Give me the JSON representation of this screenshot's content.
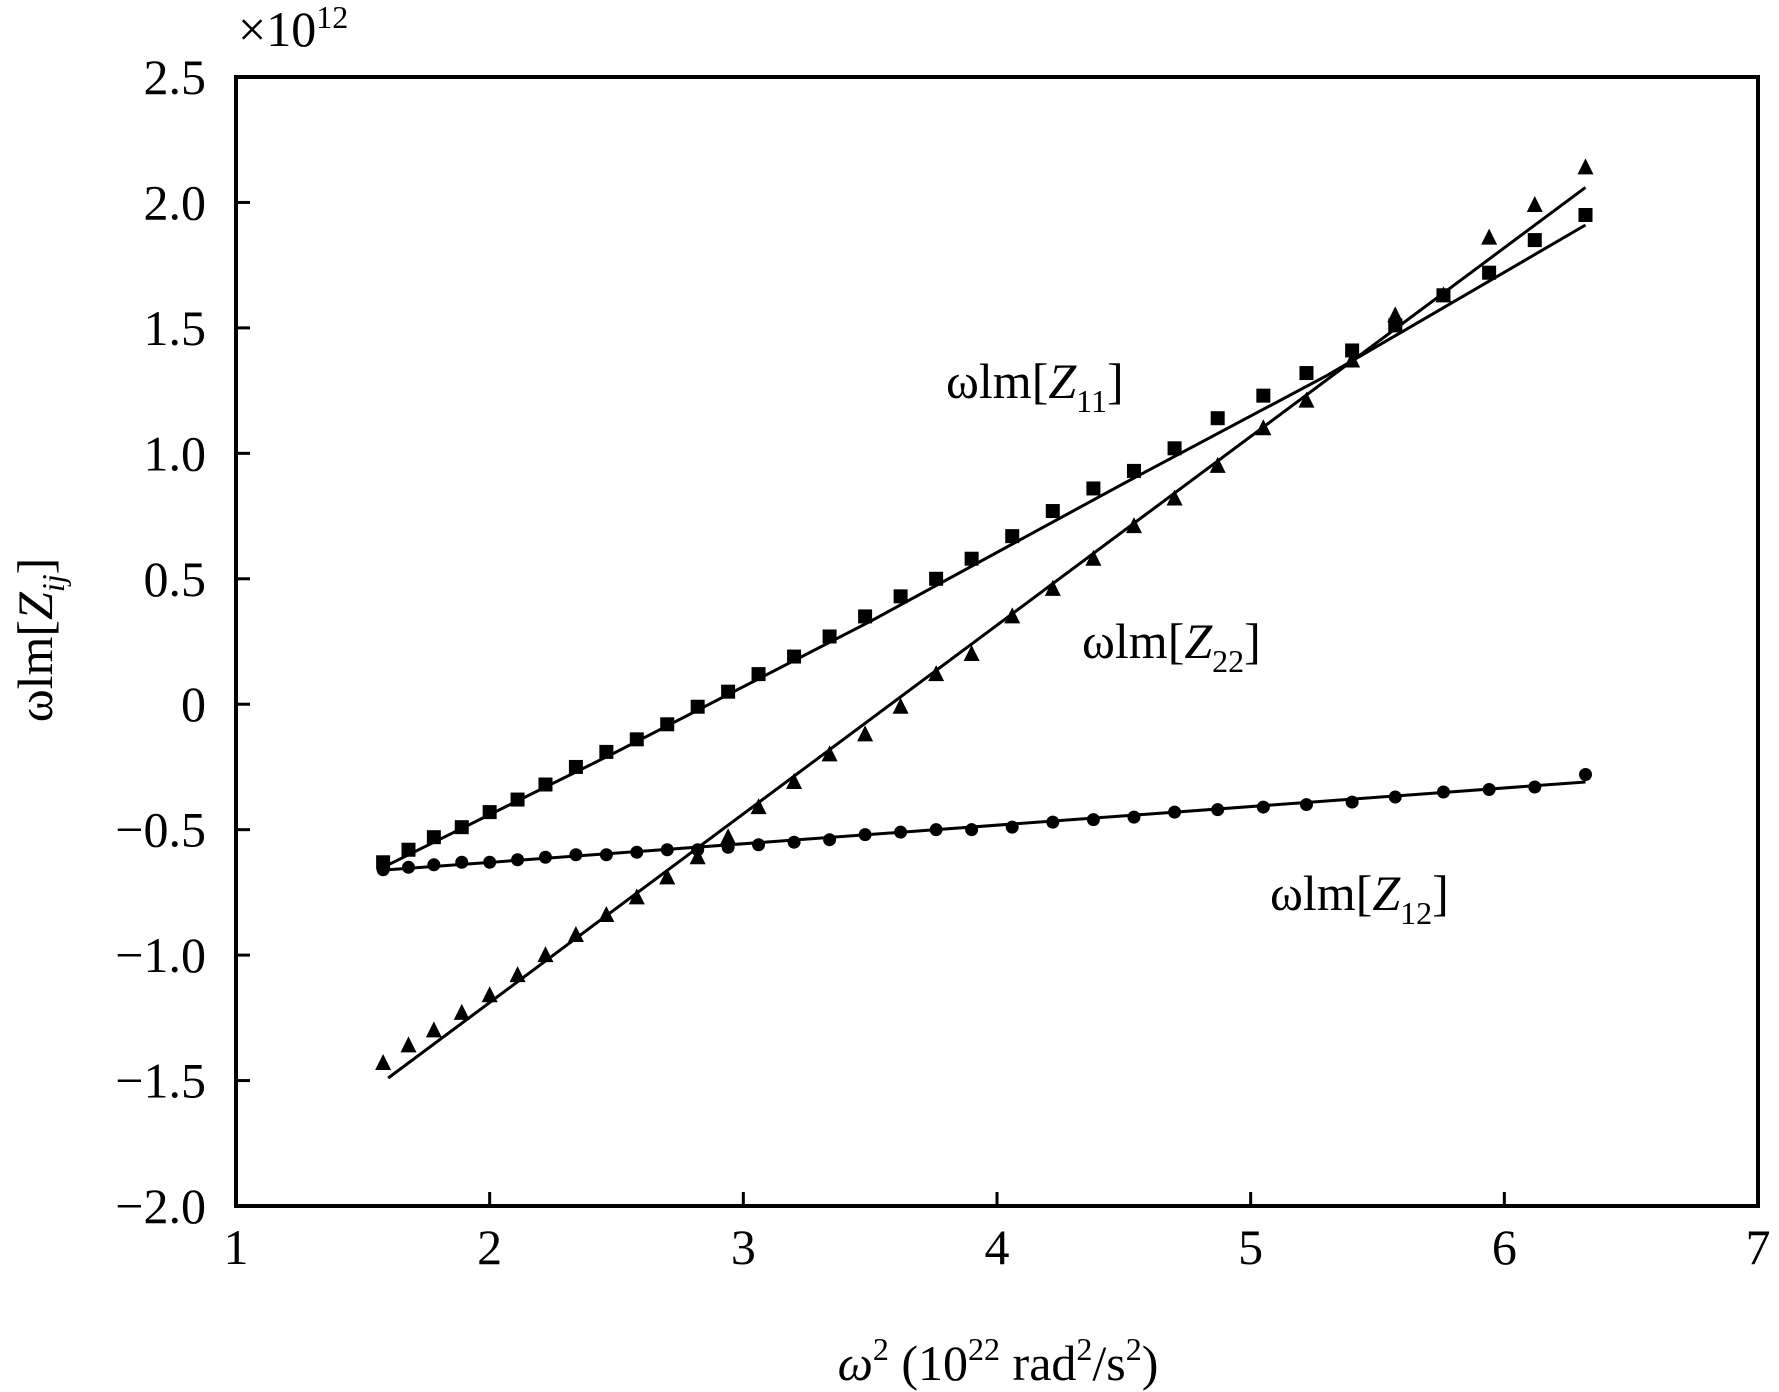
{
  "chart_data": {
    "type": "scatter",
    "title": "",
    "xlabel": {
      "base": "ω",
      "base_sup": "2",
      "open": " (10",
      "exp": "22",
      "unit_a": " rad",
      "unit_a_sup": "2",
      "unit_b": "/s",
      "unit_b_sup": "2",
      "close": ")"
    },
    "ylabel": {
      "prefix": "ωlm[",
      "var": "Z",
      "sub": "ij",
      "suffix": "]"
    },
    "y_multiplier": {
      "times": "×10",
      "exp": "12"
    },
    "xlim": [
      1,
      7
    ],
    "ylim": [
      -2.0,
      2.5
    ],
    "xticks": [
      1,
      2,
      3,
      4,
      5,
      6,
      7
    ],
    "xtick_labels": [
      "1",
      "2",
      "3",
      "4",
      "5",
      "6",
      "7"
    ],
    "yticks": [
      2.5,
      2.0,
      1.5,
      1.0,
      0.5,
      0,
      -0.5,
      -1.0,
      -1.5,
      -2.0
    ],
    "ytick_labels": [
      "2.5",
      "2.0",
      "1.5",
      "1.0",
      "0.5",
      "0",
      "−0.5",
      "−1.0",
      "−1.5",
      "−2.0"
    ],
    "grid": false,
    "series": [
      {
        "name": "ωlm[Z11]",
        "label": {
          "prefix": "ωlm[",
          "var": "Z",
          "sub": "11",
          "suffix": "]"
        },
        "marker": "square",
        "color": "#000000",
        "x": [
          1.58,
          1.68,
          1.78,
          1.89,
          2.0,
          2.11,
          2.22,
          2.34,
          2.46,
          2.58,
          2.7,
          2.82,
          2.94,
          3.06,
          3.2,
          3.34,
          3.48,
          3.62,
          3.76,
          3.9,
          4.06,
          4.22,
          4.38,
          4.54,
          4.7,
          4.87,
          5.05,
          5.22,
          5.4,
          5.57,
          5.76,
          5.94,
          6.12,
          6.32
        ],
        "y": [
          -0.63,
          -0.58,
          -0.53,
          -0.49,
          -0.43,
          -0.38,
          -0.32,
          -0.25,
          -0.19,
          -0.14,
          -0.08,
          -0.01,
          0.05,
          0.12,
          0.19,
          0.27,
          0.35,
          0.43,
          0.5,
          0.58,
          0.67,
          0.77,
          0.86,
          0.93,
          1.02,
          1.14,
          1.23,
          1.32,
          1.41,
          1.51,
          1.63,
          1.72,
          1.85,
          1.95
        ],
        "fit": {
          "x": [
            1.6,
            2.5,
            3.5,
            4.5,
            5.3,
            6.32
          ],
          "y": [
            -0.64,
            -0.19,
            0.33,
            0.88,
            1.31,
            1.91
          ]
        }
      },
      {
        "name": "ωlm[Z22]",
        "label": {
          "prefix": "ωlm[",
          "var": "Z",
          "sub": "22",
          "suffix": "]"
        },
        "marker": "triangle",
        "color": "#000000",
        "x": [
          1.58,
          1.68,
          1.78,
          1.89,
          2.0,
          2.11,
          2.22,
          2.34,
          2.46,
          2.58,
          2.7,
          2.82,
          2.94,
          3.06,
          3.2,
          3.34,
          3.48,
          3.62,
          3.76,
          3.9,
          4.06,
          4.22,
          4.38,
          4.54,
          4.7,
          4.87,
          5.05,
          5.22,
          5.4,
          5.57,
          5.76,
          5.94,
          6.12,
          6.32
        ],
        "y": [
          -1.43,
          -1.36,
          -1.3,
          -1.23,
          -1.16,
          -1.08,
          -1.0,
          -0.92,
          -0.84,
          -0.77,
          -0.69,
          -0.61,
          -0.53,
          -0.41,
          -0.31,
          -0.2,
          -0.12,
          -0.01,
          0.12,
          0.2,
          0.35,
          0.46,
          0.58,
          0.71,
          0.82,
          0.95,
          1.1,
          1.21,
          1.37,
          1.55,
          1.63,
          1.86,
          1.99,
          2.14
        ],
        "fit": {
          "x": [
            1.6,
            6.32
          ],
          "y": [
            -1.49,
            2.06
          ]
        }
      },
      {
        "name": "ωlm[Z12]",
        "label": {
          "prefix": "ωlm[",
          "var": "Z",
          "sub": "12",
          "suffix": "]"
        },
        "marker": "circle",
        "color": "#000000",
        "x": [
          1.58,
          1.68,
          1.78,
          1.89,
          2.0,
          2.11,
          2.22,
          2.34,
          2.46,
          2.58,
          2.7,
          2.82,
          2.94,
          3.06,
          3.2,
          3.34,
          3.48,
          3.62,
          3.76,
          3.9,
          4.06,
          4.22,
          4.38,
          4.54,
          4.7,
          4.87,
          5.05,
          5.22,
          5.4,
          5.57,
          5.76,
          5.94,
          6.12,
          6.32
        ],
        "y": [
          -0.66,
          -0.65,
          -0.64,
          -0.63,
          -0.63,
          -0.62,
          -0.61,
          -0.6,
          -0.6,
          -0.59,
          -0.58,
          -0.58,
          -0.57,
          -0.56,
          -0.55,
          -0.54,
          -0.52,
          -0.51,
          -0.5,
          -0.5,
          -0.49,
          -0.47,
          -0.46,
          -0.45,
          -0.43,
          -0.42,
          -0.41,
          -0.4,
          -0.39,
          -0.37,
          -0.35,
          -0.34,
          -0.33,
          -0.28
        ],
        "fit": {
          "x": [
            1.6,
            6.32
          ],
          "y": [
            -0.66,
            -0.31
          ]
        }
      }
    ]
  }
}
